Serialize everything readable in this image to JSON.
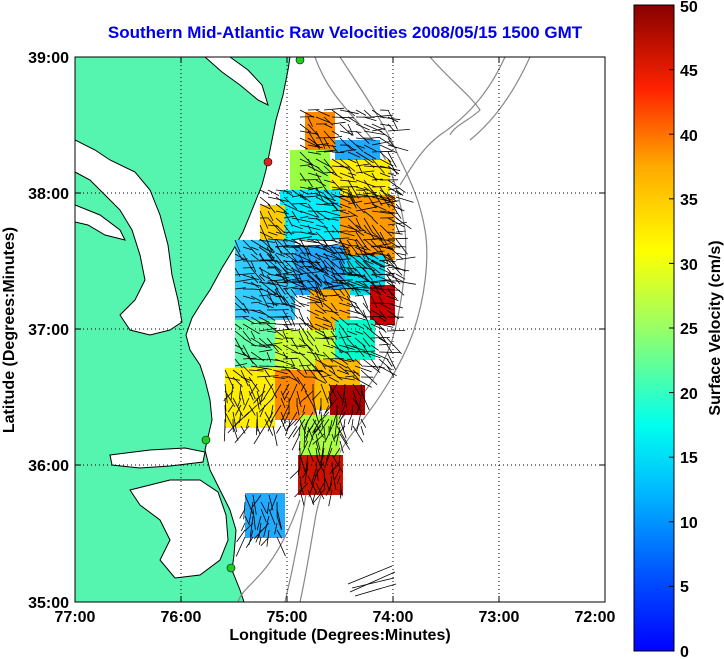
{
  "title": "Southern Mid-Atlantic Raw Velocities 2008/05/15 1500 GMT",
  "xlabel": "Longitude (Degrees:Minutes)",
  "ylabel": "Latitude (Degrees:Minutes)",
  "x_ticks": [
    "77:00",
    "76:00",
    "75:00",
    "74:00",
    "73:00",
    "72:00"
  ],
  "y_ticks": [
    "39:00",
    "38:00",
    "37:00",
    "36:00",
    "35:00"
  ],
  "colorbar": {
    "label": "Surface Velocity (cm/s)",
    "ticks": [
      "50",
      "45",
      "40",
      "35",
      "30",
      "25",
      "20",
      "15",
      "10",
      "5",
      "0"
    ],
    "min": 0,
    "max": 50
  },
  "colors": {
    "land": "#55f5b0",
    "coast": "#000000",
    "title": "#0000ee",
    "station": "#22cc22",
    "station_alert": "#dd2222",
    "bathymetry": "#888888"
  }
}
